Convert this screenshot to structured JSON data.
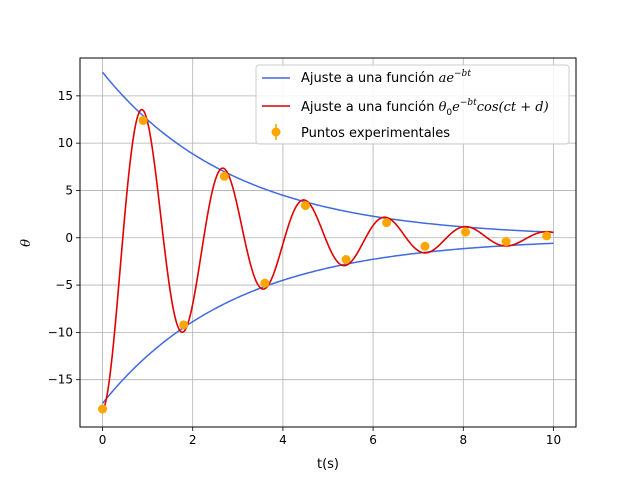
{
  "chart_data": {
    "type": "line",
    "title": "",
    "xlabel": "t(s)",
    "ylabel": "θ",
    "xlim": [
      -0.5,
      10.5
    ],
    "ylim": [
      -20,
      19
    ],
    "xticks": [
      0,
      2,
      4,
      6,
      8,
      10
    ],
    "yticks": [
      -15,
      -10,
      -5,
      0,
      5,
      10,
      15
    ],
    "grid": true,
    "legend_position": "upper right",
    "series": [
      {
        "name": "Ajuste a una función ae^{-bt}",
        "kind": "envelope",
        "color": "#4169e1",
        "model": "±a·exp(-b·t)",
        "params": {
          "a": 17.5,
          "b": 0.34
        },
        "x_range": [
          0,
          10
        ]
      },
      {
        "name": "Ajuste a una función θ0e^{-bt}cos(ct+d)",
        "kind": "damped-cosine",
        "color": "#e00000",
        "model": "θ0·exp(-b·t)·cos(c·t+d)",
        "params": {
          "theta0": 18.3,
          "b": 0.34,
          "c": 3.5,
          "d": 3.14
        },
        "x_range": [
          0,
          10
        ]
      },
      {
        "name": "Puntos experimentales",
        "kind": "points",
        "color": "#ffa500",
        "x": [
          0.0,
          0.9,
          1.8,
          2.7,
          3.6,
          4.5,
          5.4,
          6.3,
          7.15,
          8.05,
          8.95,
          9.85
        ],
        "y": [
          -18.1,
          12.4,
          -9.2,
          6.5,
          -4.8,
          3.4,
          -2.3,
          1.6,
          -0.9,
          0.6,
          -0.4,
          0.2
        ]
      }
    ],
    "legend": {
      "envelope_label_prefix": "Ajuste a una función ",
      "envelope_label_math": "ae",
      "envelope_label_sup": "−bt",
      "fit_label_prefix": "Ajuste a una función ",
      "fit_label_math_a": "θ",
      "fit_label_sub": "0",
      "fit_label_math_b": "e",
      "fit_label_sup": "−bt",
      "fit_label_math_c": "cos(ct + d)",
      "points_label": "Puntos experimentales"
    }
  }
}
